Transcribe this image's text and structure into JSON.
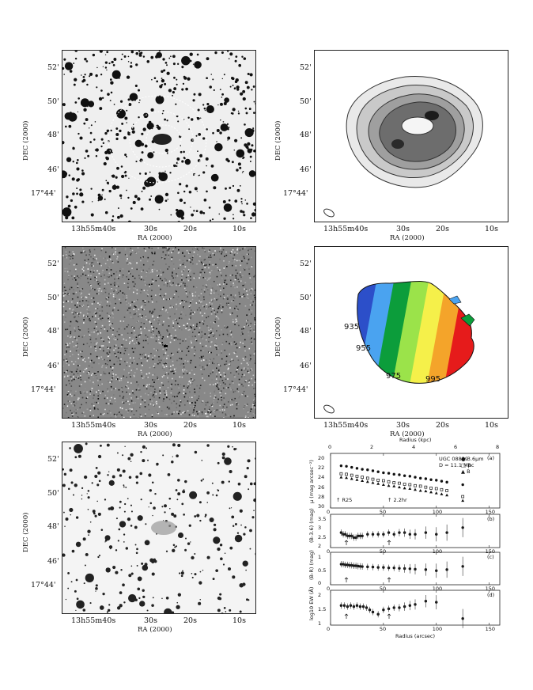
{
  "sky_axes": {
    "ra_label": "RA (2000)",
    "dec_label": "DEC (2000)",
    "ra_ticks": [
      "13h55m40s",
      "30s",
      "20s",
      "10s"
    ],
    "dec_ticks": [
      "52'",
      "50'",
      "48'",
      "46'",
      "17°44'"
    ]
  },
  "velocity_map": {
    "contour_labels": [
      "935",
      "955",
      "975",
      "995"
    ],
    "colors": [
      "#3a3a3a",
      "#6a1ea8",
      "#2c4fc9",
      "#4aa3f0",
      "#0c9d3b",
      "#9be34a",
      "#f5f04a",
      "#f4a42a",
      "#e61b1b"
    ]
  },
  "profiles": {
    "top_axis_label": "Radius (kpc)",
    "top_ticks": [
      "0",
      "2",
      "4",
      "6",
      "8"
    ],
    "bottom_axis_label": "Radius (arcsec)",
    "bottom_ticks": [
      "0",
      "50",
      "100",
      "150"
    ],
    "panel_a": {
      "tag": "(a)",
      "ylabel": "μ (mag arcsec⁻²)",
      "yticks": [
        "20",
        "22",
        "24",
        "26",
        "28",
        "30"
      ],
      "galaxy": "UGC 08839",
      "distance": "D = 11.1 Mpc",
      "legend": [
        "3.6μm",
        "R",
        "B"
      ],
      "marker_labels": [
        "R25",
        "2.2hr"
      ]
    },
    "panel_b": {
      "tag": "(b)",
      "ylabel": "(B-3.6) (mag)",
      "yticks": [
        "3.5",
        "3",
        "2.5",
        "2"
      ]
    },
    "panel_c": {
      "tag": "(c)",
      "ylabel": "(B-R) (mag)",
      "yticks": [
        "1",
        "0.5",
        "0"
      ]
    },
    "panel_d": {
      "tag": "(d)",
      "ylabel": "log10 EW (Å)",
      "yticks": [
        "2",
        "1.5",
        "1"
      ]
    }
  },
  "chart_data": [
    {
      "type": "scatter",
      "title": "",
      "xlabel": "Radius (arcsec)",
      "ylabel": "μ (mag arcsec⁻²)",
      "xlim": [
        0,
        160
      ],
      "ylim": [
        30,
        19
      ],
      "x": [
        10,
        15,
        20,
        25,
        30,
        35,
        40,
        45,
        50,
        55,
        60,
        65,
        70,
        75,
        80,
        85,
        90,
        95,
        100,
        105,
        110,
        125
      ],
      "series": [
        {
          "name": "3.6μm",
          "values": [
            21.5,
            21.6,
            21.8,
            22.0,
            22.2,
            22.3,
            22.5,
            22.7,
            22.9,
            23.0,
            23.2,
            23.3,
            23.5,
            23.6,
            23.8,
            24.0,
            24.1,
            24.3,
            24.4,
            24.6,
            24.8,
            25.3
          ]
        },
        {
          "name": "R",
          "values": [
            23.1,
            23.2,
            23.4,
            23.6,
            23.8,
            24.0,
            24.2,
            24.4,
            24.5,
            24.7,
            24.9,
            25.0,
            25.2,
            25.3,
            25.5,
            25.6,
            25.8,
            26.0,
            26.1,
            26.3,
            26.5,
            27.7
          ]
        },
        {
          "name": "B",
          "values": [
            23.8,
            23.9,
            24.1,
            24.3,
            24.5,
            24.7,
            24.9,
            25.1,
            25.3,
            25.5,
            25.6,
            25.8,
            26.0,
            26.1,
            26.3,
            26.5,
            26.6,
            26.8,
            27.0,
            27.2,
            27.4,
            28.5
          ]
        }
      ]
    },
    {
      "type": "scatter",
      "xlabel": "Radius (arcsec)",
      "ylabel": "(B-3.6) (mag)",
      "xlim": [
        0,
        160
      ],
      "ylim": [
        1.8,
        3.8
      ],
      "x": [
        10,
        12,
        14,
        16,
        18,
        20,
        22,
        24,
        26,
        28,
        30,
        35,
        40,
        45,
        50,
        55,
        60,
        65,
        70,
        75,
        80,
        90,
        100,
        110,
        125
      ],
      "series": [
        {
          "name": "",
          "values": [
            2.7,
            2.6,
            2.6,
            2.5,
            2.5,
            2.5,
            2.4,
            2.4,
            2.5,
            2.5,
            2.5,
            2.6,
            2.6,
            2.6,
            2.6,
            2.7,
            2.6,
            2.7,
            2.7,
            2.6,
            2.6,
            2.7,
            2.6,
            2.7,
            3.0
          ]
        }
      ]
    },
    {
      "type": "scatter",
      "xlabel": "Radius (arcsec)",
      "ylabel": "(B-R) (mag)",
      "xlim": [
        0,
        160
      ],
      "ylim": [
        -0.1,
        1.4
      ],
      "x": [
        10,
        12,
        14,
        16,
        18,
        20,
        22,
        24,
        26,
        28,
        30,
        35,
        40,
        45,
        50,
        55,
        60,
        65,
        70,
        75,
        80,
        90,
        100,
        110,
        125
      ],
      "series": [
        {
          "name": "",
          "values": [
            0.85,
            0.85,
            0.82,
            0.82,
            0.8,
            0.8,
            0.78,
            0.78,
            0.76,
            0.75,
            0.74,
            0.73,
            0.72,
            0.7,
            0.7,
            0.68,
            0.68,
            0.66,
            0.65,
            0.64,
            0.62,
            0.6,
            0.55,
            0.6,
            0.75
          ]
        }
      ]
    },
    {
      "type": "scatter",
      "xlabel": "Radius (arcsec)",
      "ylabel": "log10 EW (Å)",
      "xlim": [
        0,
        160
      ],
      "ylim": [
        0.7,
        2.3
      ],
      "x": [
        10,
        13,
        16,
        19,
        22,
        25,
        28,
        31,
        34,
        37,
        40,
        45,
        50,
        55,
        60,
        65,
        70,
        75,
        80,
        90,
        100,
        125
      ],
      "series": [
        {
          "name": "",
          "values": [
            1.6,
            1.6,
            1.55,
            1.6,
            1.55,
            1.6,
            1.55,
            1.55,
            1.5,
            1.4,
            1.3,
            1.2,
            1.4,
            1.45,
            1.5,
            1.5,
            1.55,
            1.6,
            1.65,
            1.8,
            1.75,
            1.0
          ]
        }
      ]
    }
  ]
}
